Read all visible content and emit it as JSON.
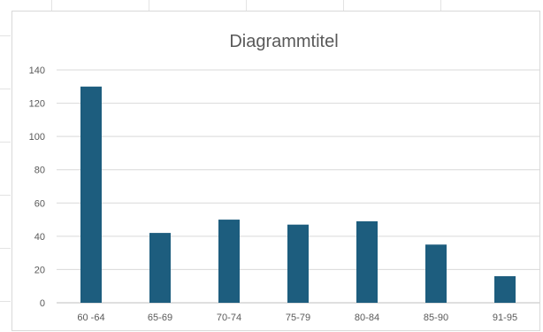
{
  "chart_data": {
    "type": "bar",
    "title": "Diagrammtitel",
    "xlabel": "",
    "ylabel": "",
    "categories": [
      "60-64",
      "65-69",
      "70-74",
      "75-79",
      "80-84",
      "85-90",
      "91-95"
    ],
    "category_labels": [
      "60 -64",
      "65-69",
      "70-74",
      "75-79",
      "80-84",
      "85-90",
      "91-95"
    ],
    "values": [
      130,
      42,
      50,
      47,
      49,
      35,
      16
    ],
    "ylim": [
      0,
      140
    ],
    "yticks": [
      0,
      20,
      40,
      60,
      80,
      100,
      120,
      140
    ],
    "grid": true,
    "legend": "none",
    "colors": {
      "bar": "#1d5d7e",
      "grid": "#d9d9d9",
      "text": "#595959",
      "axis": "#bfbfbf"
    }
  }
}
